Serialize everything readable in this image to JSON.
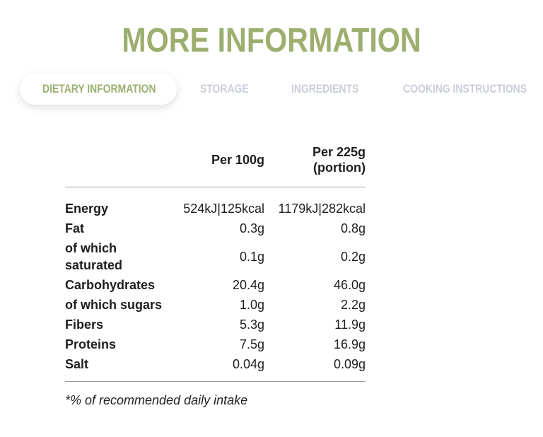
{
  "page_title": "MORE INFORMATION",
  "tabs": [
    {
      "label": "DIETARY INFORMATION",
      "active": true
    },
    {
      "label": "STORAGE",
      "active": false
    },
    {
      "label": "INGREDIENTS",
      "active": false
    },
    {
      "label": "COOKING INSTRUCTIONS",
      "active": false
    }
  ],
  "nutrition": {
    "columns": {
      "per_100": "Per 100g",
      "per_225": "Per 225g\n(portion)"
    },
    "rows": [
      {
        "label": "Energy",
        "per_100": "524kJ|125kcal",
        "per_225": "1179kJ|282kcal"
      },
      {
        "label": "Fat",
        "per_100": "0.3g",
        "per_225": "0.8g"
      },
      {
        "label": "of which\nsaturated",
        "per_100": "0.1g",
        "per_225": "0.2g"
      },
      {
        "label": "Carbohydrates",
        "per_100": "20.4g",
        "per_225": "46.0g"
      },
      {
        "label": "of which sugars",
        "per_100": "1.0g",
        "per_225": "2.2g"
      },
      {
        "label": "Fibers",
        "per_100": "5.3g",
        "per_225": "11.9g"
      },
      {
        "label": "Proteins",
        "per_100": "7.5g",
        "per_225": "16.9g"
      },
      {
        "label": "Salt",
        "per_100": "0.04g",
        "per_225": "0.09g"
      }
    ]
  },
  "footnote": "*% of recommended daily intake",
  "colors": {
    "accent": "#9caf6f",
    "inactive_tab": "#c9ced9",
    "text": "#1e1e1e",
    "divider": "#9a9a9a"
  }
}
